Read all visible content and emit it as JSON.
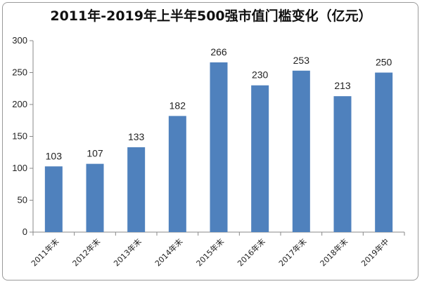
{
  "chart_data": {
    "type": "bar",
    "title": "2011年-2019年上半年500强市值门槛变化（亿元）",
    "categories": [
      "2011年末",
      "2012年末",
      "2013年末",
      "2014年末",
      "2015年末",
      "2016年末",
      "2017年末",
      "2018年末",
      "2019年中"
    ],
    "values": [
      103,
      107,
      133,
      182,
      266,
      230,
      253,
      213,
      250
    ],
    "ylim": [
      0,
      300
    ],
    "yticks": [
      0,
      50,
      100,
      150,
      200,
      250,
      300
    ],
    "bar_color": "#4f81bd",
    "grid": false,
    "legend": "none"
  }
}
